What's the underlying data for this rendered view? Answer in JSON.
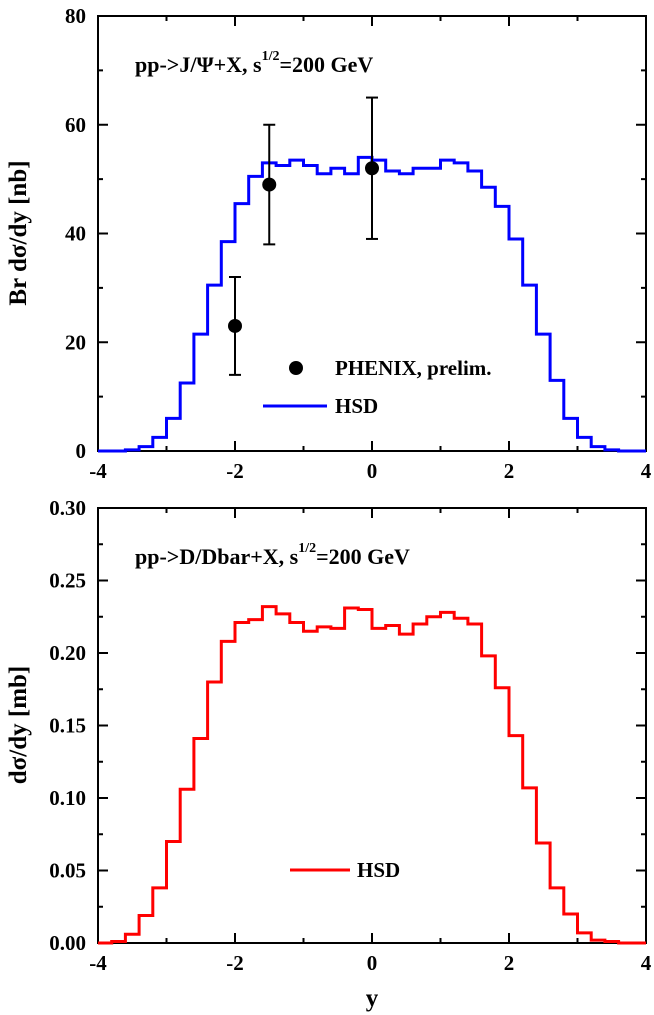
{
  "chart_data": [
    {
      "type": "line",
      "title": "pp->J/Ψ+X,  s1/2=200 GeV",
      "title_parts": {
        "main": "pp->J/Ψ+X,  s",
        "sup": "1/2",
        "tail": "=200 GeV"
      },
      "xlabel": "",
      "ylabel": "Br dσ/dy [nb]",
      "xlim": [
        -4,
        4
      ],
      "ylim": [
        0,
        80
      ],
      "xticks": [
        -4,
        -2,
        0,
        2,
        4
      ],
      "xtick_labels": [
        "-4",
        "-2",
        "0",
        "2",
        "4"
      ],
      "yticks": [
        0,
        20,
        40,
        60,
        80
      ],
      "ytick_labels": [
        "0",
        "20",
        "40",
        "60",
        "80"
      ],
      "legend": [
        "PHENIX, prelim.",
        "HSD"
      ],
      "legend_position": "bottom-center",
      "series": [
        {
          "name": "HSD",
          "color": "#0000ff",
          "style": "step",
          "bin_edges": [
            -4.0,
            -3.8,
            -3.6,
            -3.4,
            -3.2,
            -3.0,
            -2.8,
            -2.6,
            -2.4,
            -2.2,
            -2.0,
            -1.8,
            -1.6,
            -1.4,
            -1.2,
            -1.0,
            -0.8,
            -0.6,
            -0.4,
            -0.2,
            0.0,
            0.2,
            0.4,
            0.6,
            0.8,
            1.0,
            1.2,
            1.4,
            1.6,
            1.8,
            2.0,
            2.2,
            2.4,
            2.6,
            2.8,
            3.0,
            3.2,
            3.4,
            3.6,
            3.8,
            4.0
          ],
          "values": [
            0,
            0,
            0.2,
            0.8,
            2.5,
            6.0,
            12.5,
            21.5,
            30.5,
            38.5,
            45.5,
            50.5,
            53.0,
            52.5,
            53.5,
            52.5,
            51.0,
            52.0,
            51.0,
            54.0,
            53.5,
            51.5,
            51.0,
            52.0,
            52.0,
            53.5,
            53.0,
            51.5,
            48.5,
            45.0,
            39.0,
            30.5,
            21.5,
            13.0,
            6.0,
            2.5,
            0.8,
            0.2,
            0,
            0
          ]
        },
        {
          "name": "PHENIX, prelim.",
          "color": "#000000",
          "style": "points-with-errorbars",
          "x": [
            -2.0,
            -1.5,
            0.0
          ],
          "y": [
            23,
            49,
            52
          ],
          "yerr_low": [
            9,
            11,
            13
          ],
          "yerr_high": [
            9,
            11,
            13
          ]
        }
      ]
    },
    {
      "type": "line",
      "title": "pp->D/Dbar+X,  s1/2=200 GeV",
      "title_parts": {
        "main": "pp->D/Dbar+X,  s",
        "sup": "1/2",
        "tail": "=200 GeV"
      },
      "xlabel": "y",
      "ylabel": "dσ/dy [mb]",
      "xlim": [
        -4,
        4
      ],
      "ylim": [
        0,
        0.3
      ],
      "xticks": [
        -4,
        -2,
        0,
        2,
        4
      ],
      "xtick_labels": [
        "-4",
        "-2",
        "0",
        "2",
        "4"
      ],
      "yticks": [
        0,
        0.05,
        0.1,
        0.15,
        0.2,
        0.25,
        0.3
      ],
      "ytick_labels": [
        "0.00",
        "0.05",
        "0.10",
        "0.15",
        "0.20",
        "0.25",
        "0.30"
      ],
      "legend": [
        "HSD"
      ],
      "legend_position": "bottom-center",
      "series": [
        {
          "name": "HSD",
          "color": "#ff0000",
          "style": "step",
          "bin_edges": [
            -4.0,
            -3.8,
            -3.6,
            -3.4,
            -3.2,
            -3.0,
            -2.8,
            -2.6,
            -2.4,
            -2.2,
            -2.0,
            -1.8,
            -1.6,
            -1.4,
            -1.2,
            -1.0,
            -0.8,
            -0.6,
            -0.4,
            -0.2,
            0.0,
            0.2,
            0.4,
            0.6,
            0.8,
            1.0,
            1.2,
            1.4,
            1.6,
            1.8,
            2.0,
            2.2,
            2.4,
            2.6,
            2.8,
            3.0,
            3.2,
            3.4,
            3.6,
            3.8,
            4.0
          ],
          "values": [
            0,
            0.001,
            0.006,
            0.019,
            0.038,
            0.07,
            0.106,
            0.141,
            0.18,
            0.208,
            0.221,
            0.223,
            0.232,
            0.227,
            0.221,
            0.215,
            0.218,
            0.217,
            0.231,
            0.23,
            0.217,
            0.219,
            0.213,
            0.22,
            0.225,
            0.228,
            0.224,
            0.22,
            0.198,
            0.176,
            0.143,
            0.107,
            0.069,
            0.038,
            0.02,
            0.007,
            0.002,
            0.001,
            0,
            0
          ]
        }
      ]
    }
  ]
}
